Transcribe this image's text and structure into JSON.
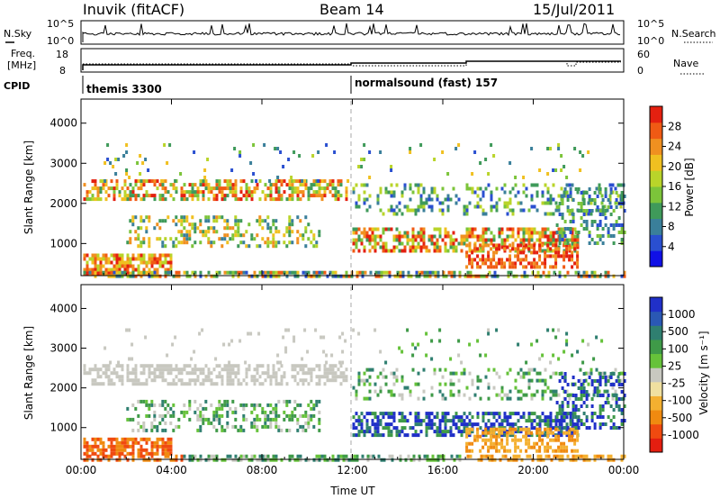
{
  "header": {
    "station": "Inuvik (fitACF)",
    "beam": "Beam 14",
    "date": "15/Jul/2011"
  },
  "top_panel": {
    "left_label": "N.Sky",
    "right_label": "N.Search",
    "left_ticks": [
      "10^5",
      "10^0"
    ],
    "right_ticks": [
      "10^5",
      "10^0"
    ]
  },
  "freq_panel": {
    "left_label_1": "Freq.",
    "left_label_2": "[MHz]",
    "right_label": "Nave",
    "left_ticks": [
      "18",
      "8"
    ],
    "right_ticks": [
      "60",
      "0"
    ]
  },
  "cpid": {
    "label": "CPID",
    "segments": [
      {
        "name": "themis 3300",
        "start_hour": 0
      },
      {
        "name": "normalsound (fast) 157",
        "start_hour": 12
      }
    ]
  },
  "chart_data": [
    {
      "type": "heatmap",
      "quantity": "Power",
      "ylabel": "Slant Range [km]",
      "yticks": [
        1000,
        2000,
        3000,
        4000
      ],
      "ylim": [
        200,
        4600
      ],
      "xlim_hours": [
        0,
        24
      ],
      "colorbar": {
        "title": "Power [dB]",
        "ticks": [
          "4",
          "8",
          "12",
          "16",
          "20",
          "24",
          "28"
        ],
        "colors": [
          "#1010e6",
          "#2a4fd0",
          "#3a7f9a",
          "#3f9a5a",
          "#7cc43a",
          "#b9d42a",
          "#f0c020",
          "#f09020",
          "#f05a14",
          "#e42010"
        ]
      }
    },
    {
      "type": "heatmap",
      "quantity": "Velocity",
      "ylabel": "Slant Range [km]",
      "xlabel": "Time UT",
      "yticks": [
        1000,
        2000,
        3000,
        4000
      ],
      "ylim": [
        200,
        4600
      ],
      "xlim_hours": [
        0,
        24
      ],
      "xtick_labels": [
        "00:00",
        "04:00",
        "08:00",
        "12:00",
        "16:00",
        "20:00",
        "00:00"
      ],
      "colorbar": {
        "title": "Velocity [m s⁻¹]",
        "ticks": [
          "1000",
          "500",
          "100",
          "25",
          "-25",
          "-100",
          "-500",
          "-1000"
        ],
        "colors": [
          "#2030c8",
          "#2a58b4",
          "#2f7f70",
          "#3f9a48",
          "#66c23a",
          "#c8c8c0",
          "#f0e0a0",
          "#f4b030",
          "#f08a10",
          "#f04a10",
          "#e41e10"
        ]
      }
    }
  ]
}
